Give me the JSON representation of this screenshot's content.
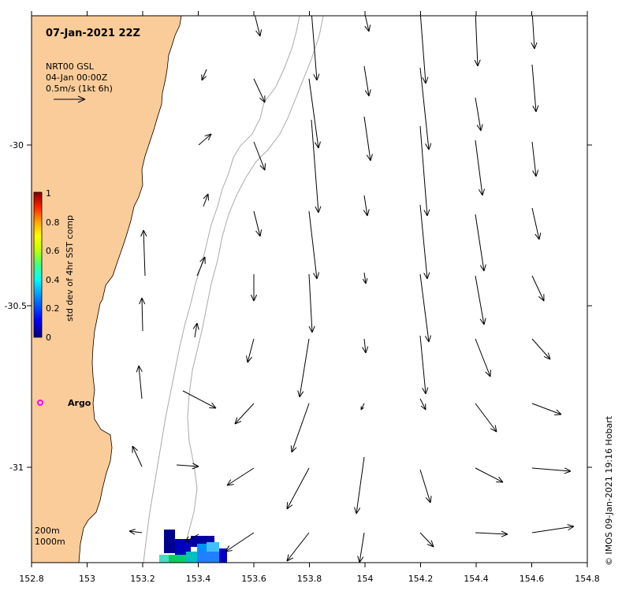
{
  "map": {
    "title": "07-Jan-2021 22Z",
    "legend": {
      "product": "NRT00 GSL",
      "date": "04-Jan 00:00Z",
      "scale": "0.5m/s (1kt 6h)"
    },
    "colorbar": {
      "label": "std dev of 4hr SST comp",
      "ticks": [
        "0",
        "0.2",
        "0.4",
        "0.6",
        "0.8",
        "1"
      ]
    },
    "isobaths": [
      "200m",
      "1000m"
    ],
    "marker_label": "Argo",
    "credit": "© IMOS 09-Jan-2021 19:16 Hobart",
    "x_ticks": [
      "152.8",
      "153",
      "153.2",
      "153.4",
      "153.6",
      "153.8",
      "154",
      "154.2",
      "154.4",
      "154.6",
      "154.8"
    ],
    "y_ticks": [
      "-30",
      "-30.5",
      "-31"
    ],
    "colors": {
      "land": "#FACC99",
      "isobath": "#AAAAAA",
      "arrow": "#000000",
      "marker": "#FF00FF"
    }
  }
}
